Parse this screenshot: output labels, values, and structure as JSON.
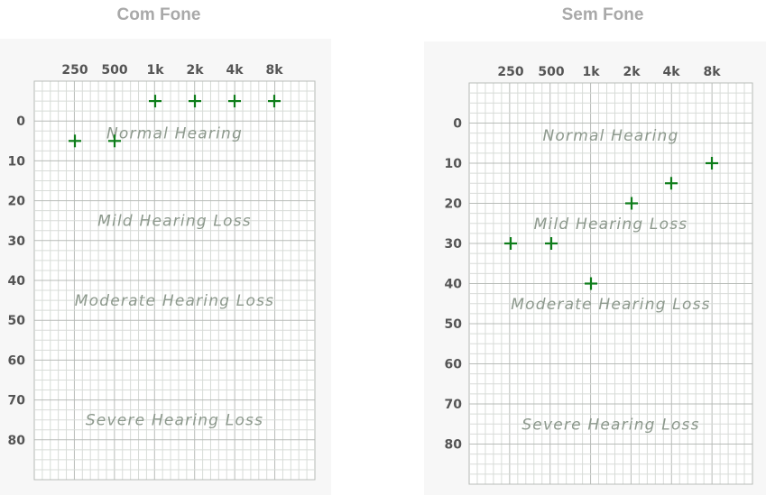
{
  "chart_data": [
    {
      "type": "scatter",
      "title": "Com Fone",
      "categories": [
        "250",
        "500",
        "1k",
        "2k",
        "4k",
        "8k"
      ],
      "y_ticks": [
        "0",
        "10",
        "20",
        "30",
        "40",
        "50",
        "60",
        "70",
        "80"
      ],
      "y_range": [
        -10,
        90
      ],
      "y_inverted": true,
      "grid": true,
      "zones": [
        {
          "label": "Normal Hearing",
          "y": 3
        },
        {
          "label": "Mild Hearing Loss",
          "y": 25
        },
        {
          "label": "Moderate Hearing Loss",
          "y": 45
        },
        {
          "label": "Severe Hearing Loss",
          "y": 75
        }
      ],
      "values": [
        5,
        5,
        -5,
        -5,
        -5,
        -5
      ],
      "marker_color": "#0e7d1a"
    },
    {
      "type": "scatter",
      "title": "Sem Fone",
      "categories": [
        "250",
        "500",
        "1k",
        "2k",
        "4k",
        "8k"
      ],
      "y_ticks": [
        "0",
        "10",
        "20",
        "30",
        "40",
        "50",
        "60",
        "70",
        "80"
      ],
      "y_range": [
        -10,
        90
      ],
      "y_inverted": true,
      "grid": true,
      "zones": [
        {
          "label": "Normal Hearing",
          "y": 3
        },
        {
          "label": "Mild Hearing Loss",
          "y": 25
        },
        {
          "label": "Moderate Hearing Loss",
          "y": 45
        },
        {
          "label": "Severe Hearing Loss",
          "y": 75
        }
      ],
      "values": [
        30,
        30,
        40,
        20,
        15,
        10
      ],
      "marker_color": "#0e7d1a"
    }
  ]
}
